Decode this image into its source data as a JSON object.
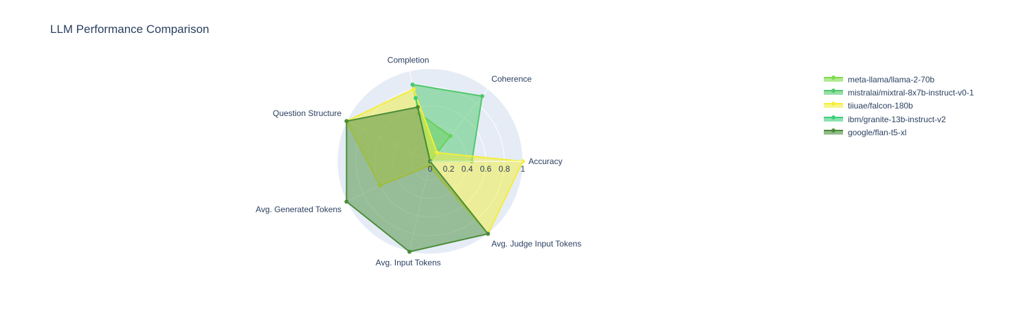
{
  "chart_data": {
    "type": "radar",
    "title": "LLM Performance Comparison",
    "axes": [
      "Accuracy",
      "Coherence",
      "Completion",
      "Question Structure",
      "Avg. Generated Tokens",
      "Avg. Input Tokens",
      "Avg. Judge Input Tokens"
    ],
    "radial_ticks": [
      "0",
      "0.2",
      "0.4",
      "0.6",
      "0.8",
      "1"
    ],
    "radial_range": [
      0,
      1
    ],
    "legend_position": "top-right",
    "series": [
      {
        "name": "meta-llama/llama-2-70b",
        "color": "#7ddc4a",
        "values": [
          0.0,
          0.35,
          0.53,
          0.0,
          0.0,
          0.0,
          0.0
        ]
      },
      {
        "name": "mistralai/mixtral-8x7b-instruct-v0-1",
        "color": "#4fc86a",
        "values": [
          0.45,
          0.9,
          0.85,
          0.0,
          0.0,
          0.0,
          0.0
        ]
      },
      {
        "name": "tiiuae/falcon-180b",
        "color": "#f4ee3a",
        "values": [
          1.0,
          0.12,
          0.8,
          1.0,
          0.6,
          0.05,
          1.0
        ]
      },
      {
        "name": "ibm/granite-13b-instruct-v2",
        "color": "#3dcf7a",
        "values": [
          0.0,
          0.0,
          0.7,
          0.0,
          0.0,
          0.0,
          0.0
        ]
      },
      {
        "name": "google/flan-t5-xl",
        "color": "#4a8c3a",
        "values": [
          0.0,
          0.0,
          0.6,
          1.0,
          1.0,
          1.0,
          1.0
        ]
      }
    ]
  }
}
